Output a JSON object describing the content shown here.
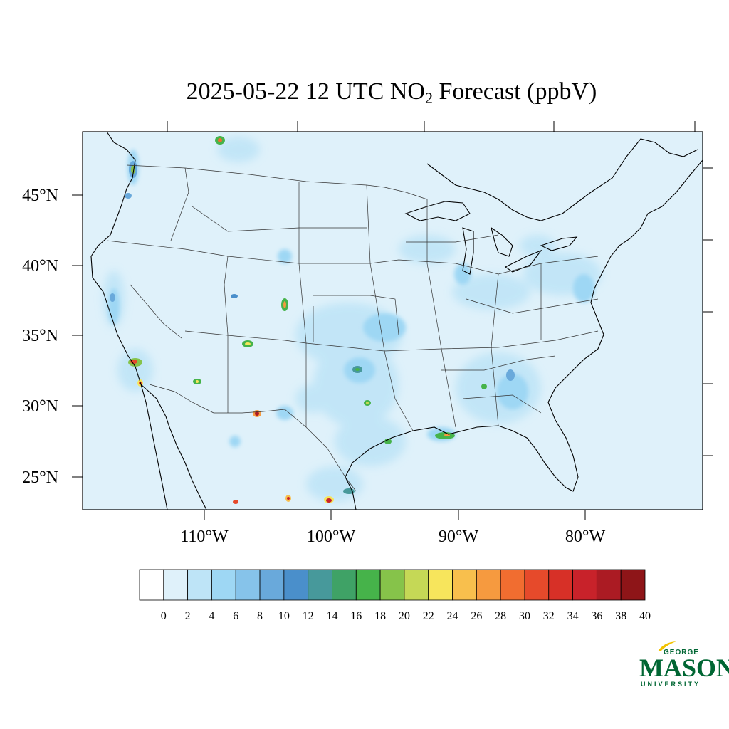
{
  "title": {
    "prefix": "2025-05-22 12 UTC NO",
    "subscript": "2",
    "suffix": " Forecast (ppbV)"
  },
  "map": {
    "background_color": "#dff1fa",
    "lat_labels": [
      "45°N",
      "40°N",
      "35°N",
      "30°N",
      "25°N"
    ],
    "lon_labels": [
      "110°W",
      "100°W",
      "90°W",
      "80°W"
    ]
  },
  "colorbar": {
    "labels": [
      "0",
      "2",
      "4",
      "6",
      "8",
      "10",
      "12",
      "14",
      "16",
      "18",
      "20",
      "22",
      "24",
      "26",
      "28",
      "30",
      "32",
      "34",
      "36",
      "38",
      "40"
    ],
    "colors": [
      "#ffffff",
      "#dff1fa",
      "#bee4f7",
      "#9ed7f4",
      "#86c3ea",
      "#69a9db",
      "#4a8fcb",
      "#47999b",
      "#3fa266",
      "#46b34a",
      "#86c34a",
      "#c5d856",
      "#f7e55c",
      "#f8bf4d",
      "#f69a3f",
      "#f16d30",
      "#e64a2b",
      "#d73027",
      "#c8222a",
      "#ab1b23",
      "#8e1518"
    ]
  },
  "hotspots": [
    {
      "name": "seattle-hotspot",
      "level": "high"
    },
    {
      "name": "portland-hotspot",
      "level": "medium"
    },
    {
      "name": "calgary-hotspot",
      "level": "high"
    },
    {
      "name": "san-francisco-hotspot",
      "level": "medium"
    },
    {
      "name": "los-angeles-hotspot",
      "level": "very-high"
    },
    {
      "name": "san-diego-hotspot",
      "level": "high"
    },
    {
      "name": "phoenix-hotspot",
      "level": "medium"
    },
    {
      "name": "salt-lake-city-hotspot",
      "level": "medium"
    },
    {
      "name": "denver-hotspot",
      "level": "high"
    },
    {
      "name": "albuquerque-hotspot",
      "level": "high"
    },
    {
      "name": "el-paso-hotspot",
      "level": "very-high"
    },
    {
      "name": "dallas-hotspot",
      "level": "medium"
    },
    {
      "name": "houston-hotspot",
      "level": "medium"
    },
    {
      "name": "new-orleans-hotspot",
      "level": "high"
    },
    {
      "name": "atlanta-hotspot",
      "level": "medium"
    },
    {
      "name": "monterrey-hotspot",
      "level": "very-high"
    },
    {
      "name": "torreon-hotspot",
      "level": "high"
    },
    {
      "name": "chihuahua-hotspot",
      "level": "high"
    }
  ],
  "logo": {
    "top": "GEORGE",
    "main": "MASON",
    "bottom": "UNIVERSITY",
    "color": "#006633",
    "accent": "#f2c300"
  }
}
